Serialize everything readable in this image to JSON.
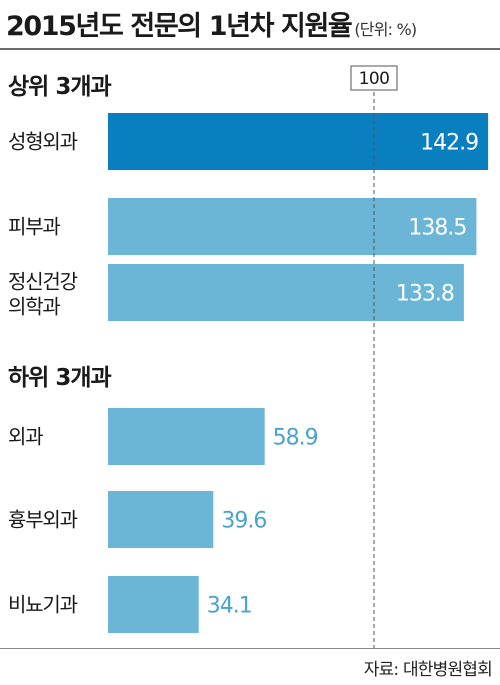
{
  "header": {
    "title": "2015년도 전문의 1년차 지원율",
    "unit": "(단위: %)"
  },
  "source": "자료: 대한병원협회",
  "chart_data": {
    "type": "bar",
    "orientation": "horizontal",
    "title": "2015년도 전문의 1년차 지원율",
    "unit": "%",
    "reference_line": {
      "value": 100,
      "label": "100"
    },
    "colors": {
      "highlight": "#0a7fc0",
      "bar": "#6bb5d7",
      "value_outside": "#4aa3cc",
      "reference": "#555555"
    },
    "groups": [
      {
        "title": "상위 3개과",
        "items": [
          {
            "lines": [
              "성형외과"
            ],
            "value": 142.9,
            "label": "142.9",
            "highlight": true
          },
          {
            "lines": [
              "피부과"
            ],
            "value": 138.5,
            "label": "138.5",
            "highlight": false
          },
          {
            "lines": [
              "정신건강",
              "의학과"
            ],
            "value": 133.8,
            "label": "133.8",
            "highlight": false
          }
        ]
      },
      {
        "title": "하위 3개과",
        "items": [
          {
            "lines": [
              "외과"
            ],
            "value": 58.9,
            "label": "58.9",
            "highlight": false
          },
          {
            "lines": [
              "흉부외과"
            ],
            "value": 39.6,
            "label": "39.6",
            "highlight": false
          },
          {
            "lines": [
              "비뇨기과"
            ],
            "value": 34.1,
            "label": "34.1",
            "highlight": false
          }
        ]
      }
    ]
  }
}
